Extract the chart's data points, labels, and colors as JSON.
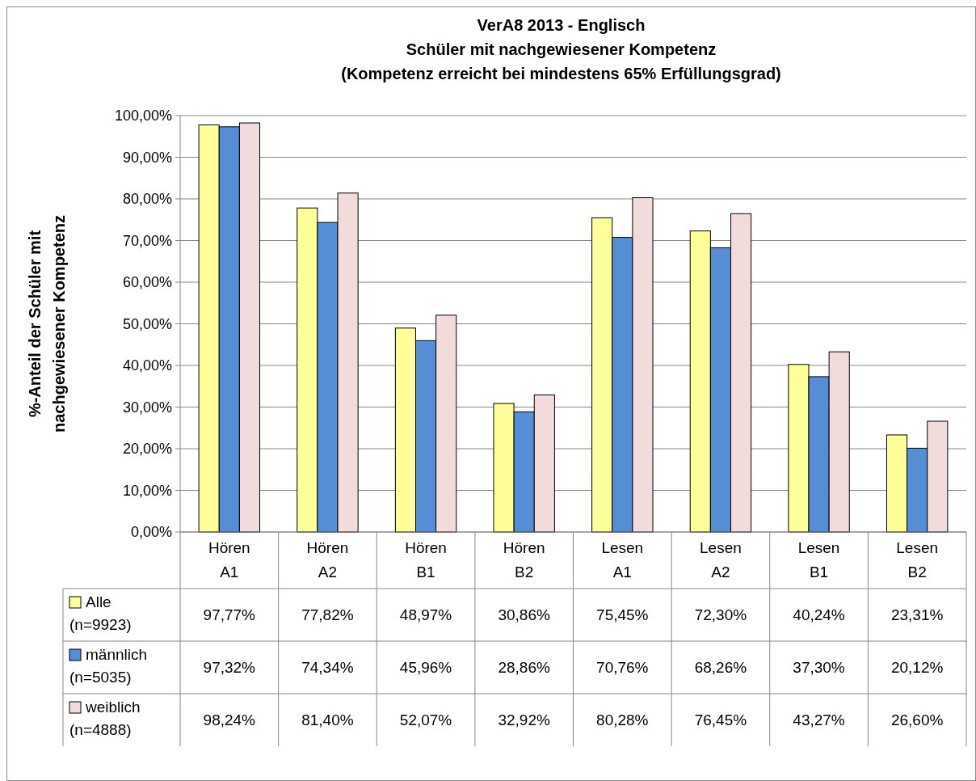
{
  "chart_data": {
    "type": "bar",
    "title": "VerA8 2013 - Englisch\nSchüler mit nachgewiesener Kompetenz\n(Kompetenz erreicht bei mindestens 65% Erfüllungsgrad)",
    "ylabel": "%-Anteil der Schüler mit\nnachgewiesener Kompetenz",
    "categories": [
      "Hören A1",
      "Hören A2",
      "Hören B1",
      "Hören B2",
      "Lesen A1",
      "Lesen A2",
      "Lesen B1",
      "Lesen B2"
    ],
    "series": [
      {
        "name": "Alle (n=9923)",
        "color": "#ffff99",
        "values": [
          97.77,
          77.82,
          48.97,
          30.86,
          75.45,
          72.3,
          40.24,
          23.31
        ],
        "value_labels": [
          "97,77%",
          "77,82%",
          "48,97%",
          "30,86%",
          "75,45%",
          "72,30%",
          "40,24%",
          "23,31%"
        ]
      },
      {
        "name": "männlich (n=5035)",
        "color": "#558ed5",
        "values": [
          97.32,
          74.34,
          45.96,
          28.86,
          70.76,
          68.26,
          37.3,
          20.12
        ],
        "value_labels": [
          "97,32%",
          "74,34%",
          "45,96%",
          "28,86%",
          "70,76%",
          "68,26%",
          "37,30%",
          "20,12%"
        ]
      },
      {
        "name": "weiblich (n=4888)",
        "color": "#f2dcdb",
        "values": [
          98.24,
          81.4,
          52.07,
          32.92,
          80.28,
          76.45,
          43.27,
          26.6
        ],
        "value_labels": [
          "98,24%",
          "81,40%",
          "52,07%",
          "32,92%",
          "80,28%",
          "76,45%",
          "43,27%",
          "26,60%"
        ]
      }
    ],
    "ylim": [
      0,
      100
    ],
    "yticks": [
      {
        "value": 0,
        "label": "0,00%"
      },
      {
        "value": 10,
        "label": "10,00%"
      },
      {
        "value": 20,
        "label": "20,00%"
      },
      {
        "value": 30,
        "label": "30,00%"
      },
      {
        "value": 40,
        "label": "40,00%"
      },
      {
        "value": 50,
        "label": "50,00%"
      },
      {
        "value": 60,
        "label": "60,00%"
      },
      {
        "value": 70,
        "label": "70,00%"
      },
      {
        "value": 80,
        "label": "80,00%"
      },
      {
        "value": 90,
        "label": "90,00%"
      },
      {
        "value": 100,
        "label": "100,00%"
      }
    ],
    "grid": "y",
    "legend": "bottom"
  }
}
